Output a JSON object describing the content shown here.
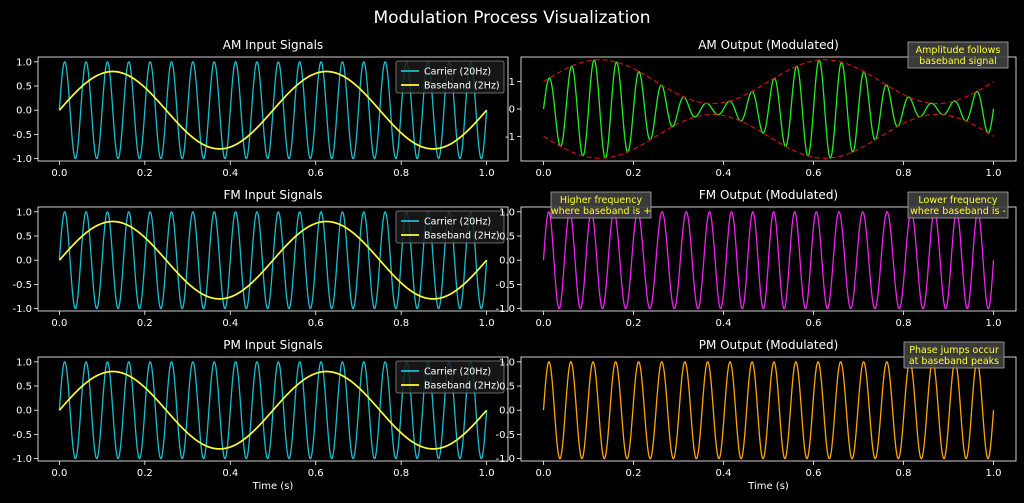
{
  "figure": {
    "title": "Modulation Process Visualization"
  },
  "colors": {
    "background": "#000000",
    "axes_edge": "#ffffff",
    "text": "#ffffff",
    "carrier": "#17becf",
    "baseband": "#ffff33",
    "am": "#22ee22",
    "am_envelope": "#cc1111",
    "fm": "#ee22ee",
    "pm": "#ffa500",
    "annotation_text": "#ffff33",
    "annotation_box": "#404040"
  },
  "chart_data": [
    {
      "id": "am-input",
      "type": "line",
      "title": "AM Input Signals",
      "xlabel": "",
      "ylabel": "",
      "xlim": [
        -0.05,
        1.05
      ],
      "ylim": [
        -1.05,
        1.1
      ],
      "xticks": [
        "0.0",
        "0.2",
        "0.4",
        "0.6",
        "0.8",
        "1.0"
      ],
      "xtick_values": [
        0,
        0.2,
        0.4,
        0.6,
        0.8,
        1.0
      ],
      "yticks": [
        "-1.0",
        "-0.5",
        "0.0",
        "0.5",
        "1.0"
      ],
      "ytick_values": [
        -1,
        -0.5,
        0,
        0.5,
        1
      ],
      "legend": "upper-right",
      "series": [
        {
          "name": "Carrier (20Hz)",
          "color_key": "carrier",
          "formula": "sin(2*pi*20*t)",
          "amplitude": 1.0,
          "frequency_hz": 20
        },
        {
          "name": "Baseband (2Hz)",
          "color_key": "baseband",
          "formula": "0.8*sin(2*pi*2*t)",
          "amplitude": 0.8,
          "frequency_hz": 2
        }
      ],
      "annotations": []
    },
    {
      "id": "am-output",
      "type": "line",
      "title": "AM Output (Modulated)",
      "xlabel": "",
      "ylabel": "",
      "xlim": [
        -0.05,
        1.05
      ],
      "ylim": [
        -1.9,
        1.9
      ],
      "xticks": [
        "0.0",
        "0.2",
        "0.4",
        "0.6",
        "0.8",
        "1.0"
      ],
      "xtick_values": [
        0,
        0.2,
        0.4,
        0.6,
        0.8,
        1.0
      ],
      "yticks": [
        "-1",
        "0",
        "1"
      ],
      "ytick_values": [
        -1,
        0,
        1
      ],
      "legend": "none",
      "series": [
        {
          "color_key": "am",
          "formula": "(1+0.8*sin(2*pi*2*t))*sin(2*pi*20*t)",
          "amplitude": 1.0,
          "modulation_index": 0.8,
          "carrier_hz": 20,
          "baseband_hz": 2
        },
        {
          "color_key": "am_envelope",
          "formula": "±(1+0.8*sin(2*pi*2*t))",
          "style": "dashed"
        }
      ],
      "annotations": [
        {
          "text": [
            "Amplitude follows",
            "baseband signal"
          ],
          "position": "top-right"
        }
      ]
    },
    {
      "id": "fm-input",
      "type": "line",
      "title": "FM Input Signals",
      "xlabel": "",
      "ylabel": "",
      "xlim": [
        -0.05,
        1.05
      ],
      "ylim": [
        -1.05,
        1.1
      ],
      "xticks": [
        "0.0",
        "0.2",
        "0.4",
        "0.6",
        "0.8",
        "1.0"
      ],
      "xtick_values": [
        0,
        0.2,
        0.4,
        0.6,
        0.8,
        1.0
      ],
      "yticks": [
        "-1.0",
        "-0.5",
        "0.0",
        "0.5",
        "1.0"
      ],
      "ytick_values": [
        -1,
        -0.5,
        0,
        0.5,
        1
      ],
      "legend": "upper-right",
      "series": [
        {
          "name": "Carrier (20Hz)",
          "color_key": "carrier",
          "formula": "sin(2*pi*20*t)",
          "amplitude": 1.0,
          "frequency_hz": 20
        },
        {
          "name": "Baseband (2Hz)",
          "color_key": "baseband",
          "formula": "0.8*sin(2*pi*2*t)",
          "amplitude": 0.8,
          "frequency_hz": 2
        }
      ],
      "annotations": []
    },
    {
      "id": "fm-output",
      "type": "line",
      "title": "FM Output (Modulated)",
      "xlabel": "",
      "ylabel": "",
      "xlim": [
        -0.05,
        1.05
      ],
      "ylim": [
        -1.05,
        1.1
      ],
      "xticks": [
        "0.0",
        "0.2",
        "0.4",
        "0.6",
        "0.8",
        "1.0"
      ],
      "xtick_values": [
        0,
        0.2,
        0.4,
        0.6,
        0.8,
        1.0
      ],
      "yticks": [
        "-1.0",
        "-0.5",
        "0.0",
        "0.5",
        "1.0"
      ],
      "ytick_values": [
        -1,
        -0.5,
        0,
        0.5,
        1
      ],
      "legend": "none",
      "series": [
        {
          "color_key": "fm",
          "formula": "sin(2*pi*20*t + 0.8*sin(2*pi*2*t))",
          "amplitude": 1.0,
          "carrier_hz": 20,
          "baseband_hz": 2,
          "deviation": 0.8
        }
      ],
      "annotations": [
        {
          "text": [
            "Higher frequency",
            "where baseband is +"
          ],
          "position": "top-left"
        },
        {
          "text": [
            "Lower frequency",
            "where baseband is -"
          ],
          "position": "top-right"
        }
      ]
    },
    {
      "id": "pm-input",
      "type": "line",
      "title": "PM Input Signals",
      "xlabel": "Time (s)",
      "ylabel": "",
      "xlim": [
        -0.05,
        1.05
      ],
      "ylim": [
        -1.05,
        1.1
      ],
      "xticks": [
        "0.0",
        "0.2",
        "0.4",
        "0.6",
        "0.8",
        "1.0"
      ],
      "xtick_values": [
        0,
        0.2,
        0.4,
        0.6,
        0.8,
        1.0
      ],
      "yticks": [
        "-1.0",
        "-0.5",
        "0.0",
        "0.5",
        "1.0"
      ],
      "ytick_values": [
        -1,
        -0.5,
        0,
        0.5,
        1
      ],
      "legend": "upper-right",
      "series": [
        {
          "name": "Carrier (20Hz)",
          "color_key": "carrier",
          "formula": "sin(2*pi*20*t)",
          "amplitude": 1.0,
          "frequency_hz": 20
        },
        {
          "name": "Baseband (2Hz)",
          "color_key": "baseband",
          "formula": "0.8*sin(2*pi*2*t)",
          "amplitude": 0.8,
          "frequency_hz": 2
        }
      ],
      "annotations": []
    },
    {
      "id": "pm-output",
      "type": "line",
      "title": "PM Output (Modulated)",
      "xlabel": "Time (s)",
      "ylabel": "",
      "xlim": [
        -0.05,
        1.05
      ],
      "ylim": [
        -1.05,
        1.1
      ],
      "xticks": [
        "0.0",
        "0.2",
        "0.4",
        "0.6",
        "0.8",
        "1.0"
      ],
      "xtick_values": [
        0,
        0.2,
        0.4,
        0.6,
        0.8,
        1.0
      ],
      "yticks": [
        "-1.0",
        "-0.5",
        "0.0",
        "0.5",
        "1.0"
      ],
      "ytick_values": [
        -1,
        -0.5,
        0,
        0.5,
        1
      ],
      "legend": "none",
      "series": [
        {
          "color_key": "pm",
          "formula": "sin(2*pi*20*t + 0.3*sin(2*pi*2*t))",
          "amplitude": 1.0,
          "carrier_hz": 20,
          "baseband_hz": 2,
          "phase_deviation": 0.3
        }
      ],
      "annotations": [
        {
          "text": [
            "Phase jumps occur",
            "at baseband peaks"
          ],
          "position": "top-right"
        }
      ]
    }
  ]
}
